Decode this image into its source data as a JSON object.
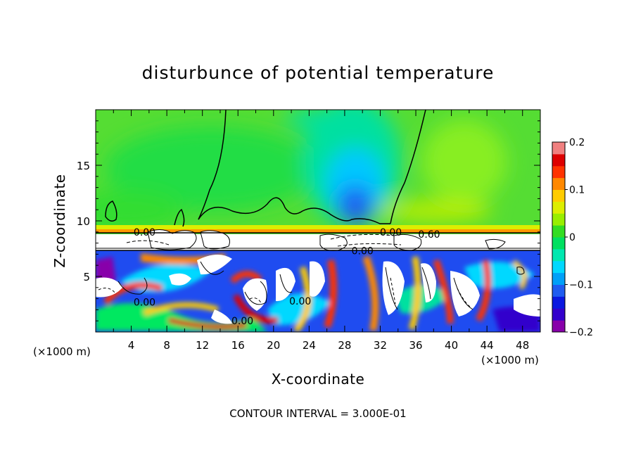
{
  "chart_data": {
    "type": "heatmap",
    "title": "disturbunce of potential temperature",
    "xlabel": "X-coordinate",
    "ylabel": "Z-coordinate",
    "x_unit_label": "(×1000 m)",
    "y_unit_label": "(×1000 m)",
    "xlim": [
      0,
      50
    ],
    "ylim": [
      0,
      20
    ],
    "x_ticks": [
      4,
      8,
      12,
      16,
      20,
      24,
      28,
      32,
      36,
      40,
      44,
      48
    ],
    "y_ticks": [
      5,
      10,
      15
    ],
    "colorbar": {
      "range": [
        -0.2,
        0.2
      ],
      "tick_values": [
        0.2,
        0.1,
        0,
        -0.1,
        -0.2
      ],
      "tick_labels": [
        "0.2",
        "0.1",
        "0",
        "−0.1",
        "−0.2"
      ],
      "colors": [
        "#8800aa",
        "#3300cc",
        "#0a18e0",
        "#1f5cf0",
        "#00a0f8",
        "#00d8ff",
        "#00e8b0",
        "#00e060",
        "#33dd22",
        "#99ee00",
        "#ddee00",
        "#ffcc00",
        "#ff8800",
        "#ff3300",
        "#dd0000",
        "#f08080"
      ]
    },
    "contour_labels": [
      {
        "text": "0.00",
        "x": 5.5,
        "z": 9.0
      },
      {
        "text": "0.00",
        "x": 33.2,
        "z": 9.0
      },
      {
        "text": "0.60",
        "x": 37.5,
        "z": 8.8
      },
      {
        "text": "0.00",
        "x": 30.0,
        "z": 7.3
      },
      {
        "text": "0.00",
        "x": 5.5,
        "z": 2.7
      },
      {
        "text": "0.00",
        "x": 23.0,
        "z": 2.8
      },
      {
        "text": "0.00",
        "x": 16.5,
        "z": 1.0
      }
    ],
    "annotation": "CONTOUR INTERVAL = 3.000E-01"
  }
}
